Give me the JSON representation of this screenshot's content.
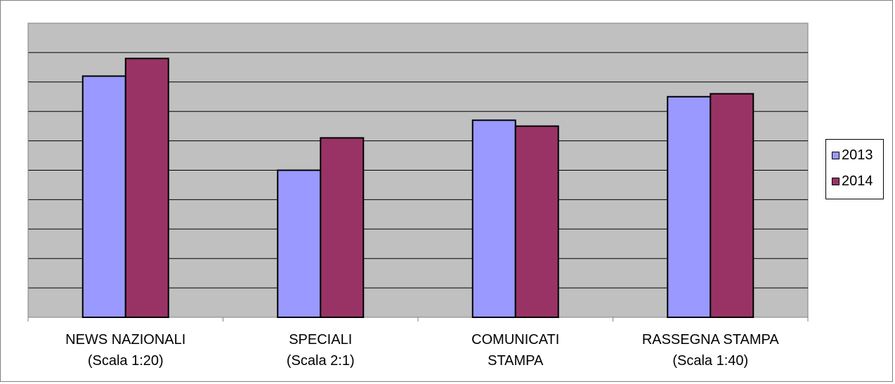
{
  "chart_data": {
    "type": "bar",
    "categories": [
      [
        "NEWS NAZIONALI",
        "(Scala 1:20)"
      ],
      [
        "SPECIALI",
        "(Scala 2:1)"
      ],
      [
        "COMUNICATI",
        "STAMPA"
      ],
      [
        "RASSEGNA STAMPA",
        "(Scala 1:40)"
      ]
    ],
    "series": [
      {
        "name": "2013",
        "values": [
          8.2,
          5.0,
          6.7,
          7.5
        ],
        "color": "#9999FF"
      },
      {
        "name": "2014",
        "values": [
          8.8,
          6.1,
          6.5,
          7.6
        ],
        "color": "#993366"
      }
    ],
    "ylim": [
      0,
      10
    ],
    "y_gridlines": 10,
    "y_tick_labels_shown": false,
    "grid": true,
    "legend_position": "right",
    "plot_background": "#C0C0C0",
    "title": "",
    "xlabel": "",
    "ylabel": ""
  }
}
